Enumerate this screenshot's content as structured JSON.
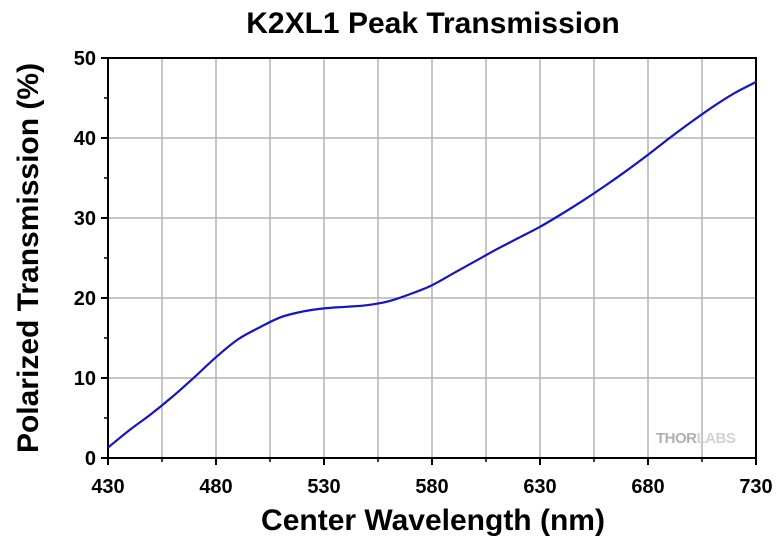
{
  "chart_data": {
    "type": "line",
    "title": "K2XL1 Peak Transmission",
    "xlabel": "Center Wavelength (nm)",
    "ylabel": "Polarized Transmission (%)",
    "xlim": [
      430,
      730
    ],
    "ylim": [
      0,
      50
    ],
    "xticks": [
      430,
      480,
      530,
      580,
      630,
      680,
      730
    ],
    "yticks": [
      0,
      10,
      20,
      30,
      40,
      50
    ],
    "x_grid_step": 25,
    "y_grid_step": 10,
    "y_minor_step": 5,
    "grid": true,
    "series": [
      {
        "name": "K2XL1",
        "color": "#1414c8",
        "x": [
          430,
          440,
          450,
          460,
          470,
          480,
          490,
          500,
          510,
          520,
          530,
          540,
          550,
          560,
          570,
          580,
          590,
          600,
          610,
          620,
          630,
          640,
          650,
          660,
          670,
          680,
          690,
          700,
          710,
          720,
          730
        ],
        "y": [
          1.3,
          3.5,
          5.5,
          7.7,
          10.1,
          12.6,
          14.8,
          16.3,
          17.6,
          18.3,
          18.7,
          18.9,
          19.1,
          19.6,
          20.5,
          21.6,
          23.1,
          24.6,
          26.1,
          27.5,
          28.9,
          30.5,
          32.2,
          34.0,
          35.9,
          37.9,
          40.0,
          42.0,
          43.9,
          45.6,
          47.0
        ]
      }
    ]
  },
  "watermark": {
    "part1": "THOR",
    "part2": "LABS"
  }
}
